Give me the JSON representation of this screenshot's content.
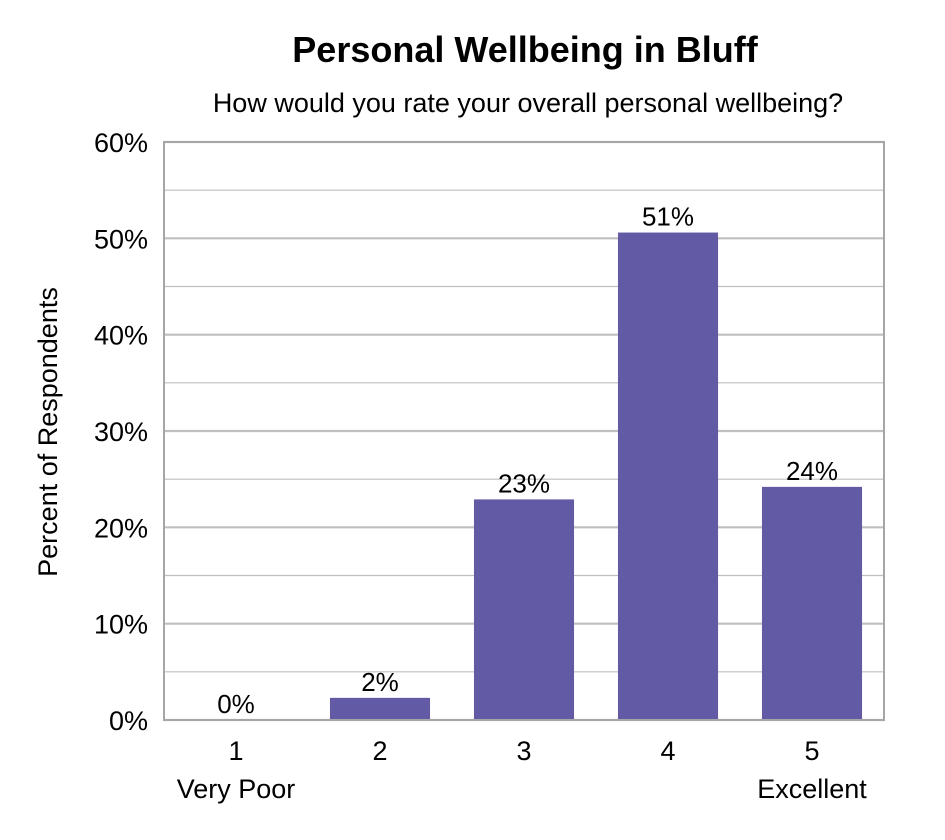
{
  "chart_data": {
    "type": "bar",
    "title": "Personal Wellbeing in Bluff",
    "subtitle": "How would you rate your overall personal wellbeing?",
    "ylabel": "Percent of Respondents",
    "xlabel": "",
    "categories": [
      "1",
      "2",
      "3",
      "4",
      "5"
    ],
    "category_sublabels": [
      "Very Poor",
      "",
      "",
      "",
      "Excellent"
    ],
    "values": [
      0,
      2.3,
      22.9,
      50.6,
      24.2
    ],
    "data_labels": [
      "0%",
      "2%",
      "23%",
      "51%",
      "24%"
    ],
    "ylim": [
      0,
      60
    ],
    "yticks": [
      0,
      10,
      20,
      30,
      40,
      50,
      60
    ],
    "ytick_labels": [
      "0%",
      "10%",
      "20%",
      "30%",
      "40%",
      "50%",
      "60%"
    ],
    "grid": true,
    "legend": "none",
    "colors": {
      "bar": "#625AA4",
      "grid": "#BFBFBF",
      "frame": "#A6A6A6",
      "text": "#000000"
    }
  }
}
